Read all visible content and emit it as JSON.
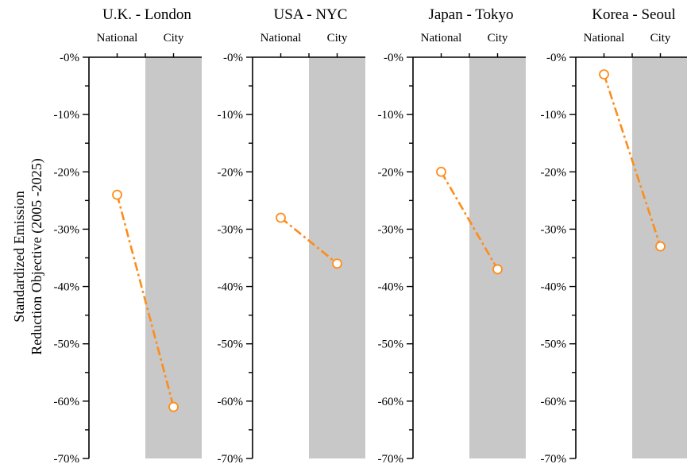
{
  "chart_data": {
    "type": "line",
    "ylabel_lines": [
      "Standardized Emission",
      "Reduction Objective (2005 -2025)"
    ],
    "categories": [
      "National",
      "City"
    ],
    "ylim": [
      -70,
      0
    ],
    "y_ticks": [
      0,
      -10,
      -20,
      -30,
      -40,
      -50,
      -60,
      -70
    ],
    "y_tick_labels": [
      "-0%",
      "-10%",
      "-20%",
      "-30%",
      "-40%",
      "-50%",
      "-60%",
      "-70%"
    ],
    "line_color": "#ff8c1a",
    "shade_color": "#c8c8c8",
    "grid": false,
    "panels": [
      {
        "title": "U.K. - London",
        "values": [
          -24,
          -61
        ]
      },
      {
        "title": "USA - NYC",
        "values": [
          -28,
          -36
        ]
      },
      {
        "title": "Japan - Tokyo",
        "values": [
          -20,
          -37
        ]
      },
      {
        "title": "Korea - Seoul",
        "values": [
          -3,
          -33
        ]
      }
    ]
  }
}
